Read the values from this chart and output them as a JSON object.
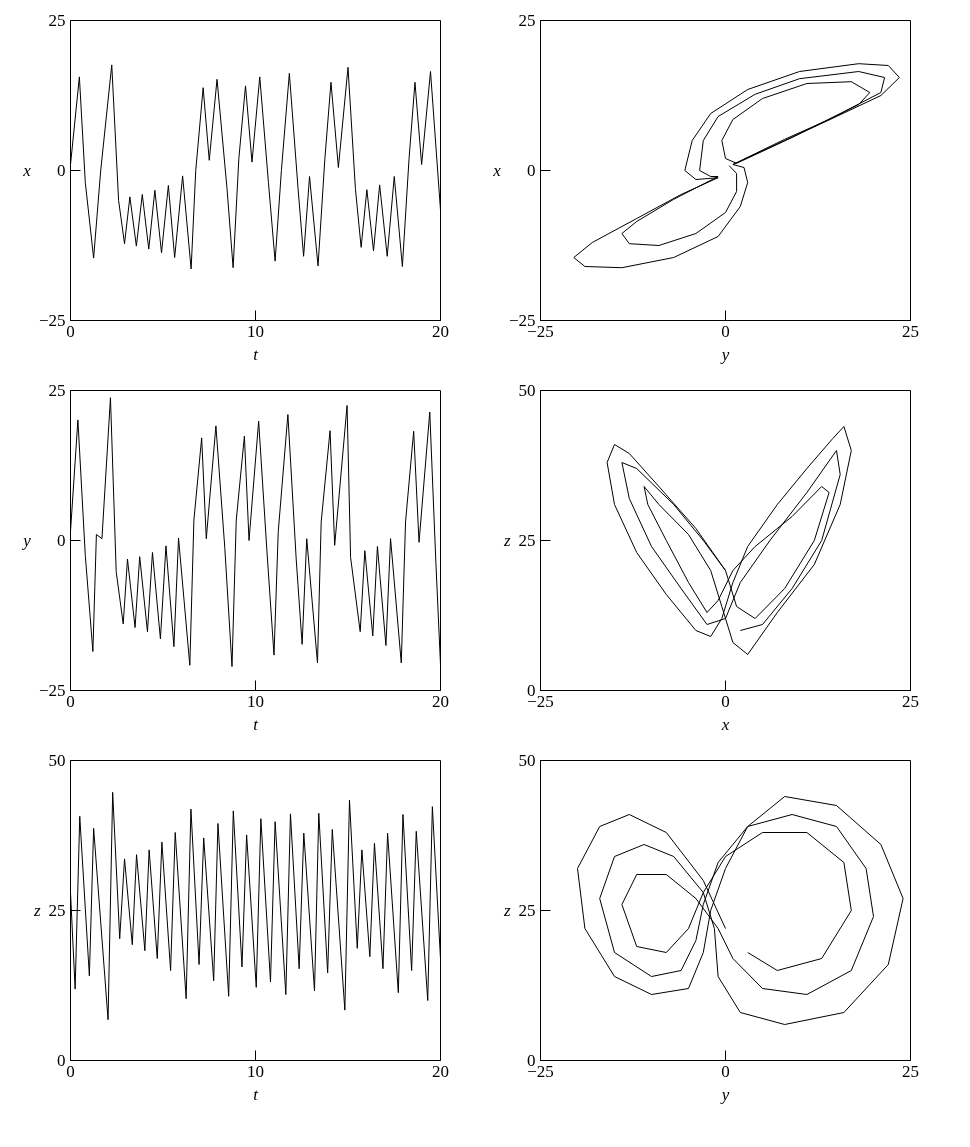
{
  "chart_data": [
    {
      "type": "line",
      "xlabel": "t",
      "ylabel": "x",
      "xlim": [
        0,
        20
      ],
      "ylim": [
        -25,
        25
      ],
      "xticks": [
        0,
        10,
        20
      ],
      "yticks": [
        -25,
        0,
        25
      ],
      "x": [
        0,
        0.48,
        0.8,
        1.25,
        1.63,
        2.23,
        2.6,
        2.92,
        3.21,
        3.56,
        3.88,
        4.23,
        4.56,
        4.92,
        5.29,
        5.63,
        6.06,
        6.52,
        6.77,
        7.17,
        7.5,
        7.92,
        8.46,
        8.79,
        9.1,
        9.46,
        9.81,
        10.23,
        10.7,
        11.06,
        11.4,
        11.83,
        12.3,
        12.6,
        12.92,
        13.38,
        13.75,
        14.08,
        14.48,
        15.0,
        15.4,
        15.71,
        16.02,
        16.38,
        16.71,
        17.12,
        17.5,
        17.94,
        18.3,
        18.62,
        18.98,
        19.46,
        20
      ],
      "series": [
        {
          "color": "#000000",
          "values": [
            1,
            15.6,
            -2,
            -14.6,
            -0.1,
            17.6,
            -5,
            -12.2,
            -4.4,
            -12.6,
            -4.0,
            -13.1,
            -3.3,
            -13.7,
            -2.5,
            -14.5,
            -0.9,
            -16.4,
            0,
            13.8,
            1.7,
            15.2,
            -3,
            -16.2,
            2,
            14.1,
            1.4,
            15.6,
            -2,
            -15.1,
            0,
            16.2,
            -3,
            -14.3,
            -1.0,
            -15.9,
            2,
            14.7,
            0.5,
            17.2,
            -3,
            -12.8,
            -3.2,
            -13.4,
            -2.4,
            -14.3,
            -1.0,
            -16.0,
            2,
            14.7,
            1.0,
            16.5,
            -6.6
          ]
        }
      ]
    },
    {
      "type": "line",
      "xlabel": "y",
      "ylabel": "x",
      "xlim": [
        -25,
        25
      ],
      "ylim": [
        -25,
        25
      ],
      "xticks": [
        -25,
        0,
        25
      ],
      "yticks": [
        -25,
        0,
        25
      ],
      "x": [
        1,
        8,
        15,
        21,
        23.5,
        22,
        18,
        10,
        3,
        -2,
        -4.5,
        -5.5,
        -4,
        -1,
        -6,
        -12,
        -18,
        -20.5,
        -19,
        -14,
        -7,
        -1,
        2,
        3,
        2.5,
        1,
        8,
        14,
        18,
        19.5,
        17,
        11,
        5,
        1,
        -0.5,
        0,
        1.5,
        9,
        16,
        21,
        21.5,
        18,
        10,
        4,
        -1,
        -3,
        -3.5,
        -2,
        -1,
        -7,
        -12,
        -14,
        -13,
        -9,
        -4,
        0,
        1.5,
        1.5,
        0.5
      ],
      "series": [
        {
          "color": "#000000",
          "values": [
            1,
            5,
            9,
            12.5,
            15.5,
            17.5,
            17.8,
            16.5,
            13.5,
            9.5,
            5,
            0,
            -1.5,
            -1.2,
            -4,
            -8,
            -12,
            -14.5,
            -16,
            -16.2,
            -14.5,
            -11,
            -6,
            -2,
            0.5,
            1,
            5.2,
            8.5,
            11,
            13,
            14.8,
            14.5,
            12,
            8.5,
            5,
            2,
            1.2,
            5.5,
            9.8,
            13,
            15.5,
            16.5,
            15.3,
            12.7,
            9,
            5,
            0,
            -1,
            -1,
            -4.8,
            -8.5,
            -10.5,
            -12.2,
            -12.5,
            -10.5,
            -7,
            -3.5,
            -0.5,
            0.8
          ]
        }
      ]
    },
    {
      "type": "line",
      "xlabel": "t",
      "ylabel": "y",
      "xlim": [
        0,
        20
      ],
      "ylim": [
        -25,
        25
      ],
      "xticks": [
        0,
        10,
        20
      ],
      "yticks": [
        -25,
        0,
        25
      ],
      "x": [
        0,
        0.4,
        0.8,
        1.21,
        1.4,
        1.7,
        2.16,
        2.47,
        2.85,
        3.08,
        3.49,
        3.74,
        4.16,
        4.43,
        4.86,
        5.16,
        5.59,
        5.84,
        6.45,
        6.67,
        7.09,
        7.34,
        7.86,
        8.34,
        8.73,
        8.96,
        9.4,
        9.65,
        10.17,
        10.62,
        11.0,
        11.23,
        11.75,
        12.2,
        12.52,
        12.77,
        13.35,
        13.55,
        14.03,
        14.28,
        14.95,
        15.14,
        15.66,
        15.91,
        16.34,
        16.59,
        17.05,
        17.3,
        17.88,
        18.11,
        18.55,
        18.84,
        19.42,
        19.75,
        20
      ],
      "series": [
        {
          "color": "#000000",
          "values": [
            1.5,
            20.1,
            -2.5,
            -18.5,
            1.0,
            0.3,
            23.8,
            -5.2,
            -13.9,
            -3.1,
            -14.5,
            -2.7,
            -15.2,
            -2.0,
            -16.4,
            -0.9,
            -17.7,
            0.4,
            -20.8,
            3.4,
            17.1,
            0.3,
            19.1,
            -1.2,
            -21.0,
            3.4,
            17.4,
            0.0,
            19.9,
            -1.9,
            -19.1,
            1.5,
            21.0,
            -3.1,
            -17.3,
            0.3,
            -20.4,
            3.1,
            18.3,
            -0.8,
            22.5,
            -2.8,
            -15.2,
            -1.7,
            -15.9,
            -1.0,
            -17.5,
            0.3,
            -20.4,
            3.1,
            18.2,
            -0.3,
            21.4,
            -3.7,
            -20.7
          ]
        }
      ]
    },
    {
      "type": "line",
      "xlabel": "x",
      "ylabel": "z",
      "xlim": [
        -25,
        25
      ],
      "ylim": [
        0,
        50
      ],
      "xticks": [
        -25,
        0,
        25
      ],
      "yticks": [
        0,
        25,
        50
      ],
      "x": [
        0,
        -4,
        -9,
        -13,
        -15,
        -16,
        -15,
        -12,
        -8,
        -4,
        -2,
        -0.5,
        1,
        3,
        7,
        11,
        14.5,
        16,
        17,
        15.5,
        12,
        7,
        3,
        1,
        -0.5,
        -2,
        -5,
        -9,
        -11,
        -10.5,
        -8,
        -5,
        -2.5,
        -1,
        1,
        4,
        9,
        13,
        14,
        12,
        8,
        4,
        1.5,
        0,
        -3,
        -7,
        -12,
        -14,
        -13,
        -10,
        -6,
        -2.5,
        0,
        2,
        6,
        11,
        15,
        15.5,
        13,
        9,
        5,
        2
      ],
      "series": [
        {
          "color": "#000000",
          "values": [
            20,
            27,
            34,
            39.5,
            41,
            38,
            31,
            23,
            16,
            10,
            9,
            12,
            18,
            24,
            31,
            37,
            42,
            44,
            40,
            31,
            21,
            13,
            6,
            8,
            14,
            20,
            26,
            31,
            34,
            31,
            25,
            18,
            13,
            15,
            20,
            24,
            29,
            34,
            33,
            25,
            17,
            12,
            14,
            20,
            25,
            31,
            37,
            38,
            32,
            24,
            17,
            11,
            12,
            18,
            25,
            33,
            40,
            36,
            25,
            17,
            11,
            10
          ]
        }
      ]
    },
    {
      "type": "line",
      "xlabel": "t",
      "ylabel": "z",
      "xlim": [
        0,
        20
      ],
      "ylim": [
        0,
        50
      ],
      "xticks": [
        0,
        10,
        20
      ],
      "yticks": [
        0,
        25,
        50
      ],
      "x": [
        0,
        0.25,
        0.5,
        1.02,
        1.25,
        2.03,
        2.28,
        2.66,
        2.92,
        3.34,
        3.57,
        4.02,
        4.25,
        4.69,
        4.94,
        5.41,
        5.66,
        6.25,
        6.51,
        6.95,
        7.2,
        7.74,
        7.97,
        8.55,
        8.8,
        9.27,
        9.52,
        10.04,
        10.29,
        10.81,
        11.06,
        11.64,
        11.89,
        12.36,
        12.61,
        13.19,
        13.42,
        13.9,
        14.15,
        14.83,
        15.08,
        15.5,
        15.75,
        16.18,
        16.43,
        16.89,
        17.14,
        17.72,
        17.97,
        18.44,
        18.69,
        19.31,
        19.56,
        20
      ],
      "series": [
        {
          "color": "#000000",
          "values": [
            28,
            11.9,
            40.7,
            14.1,
            38.7,
            6.8,
            44.7,
            20.3,
            33.6,
            19.3,
            34.3,
            18.3,
            35.1,
            17.0,
            36.4,
            15.0,
            38.0,
            10.3,
            41.9,
            16.0,
            37.1,
            13.3,
            39.5,
            10.7,
            41.6,
            15.6,
            37.6,
            12.2,
            40.3,
            13.1,
            39.8,
            11.0,
            41.1,
            15.3,
            37.9,
            11.6,
            41.2,
            14.6,
            38.5,
            8.4,
            43.4,
            18.7,
            35.1,
            17.3,
            36.2,
            15.3,
            37.9,
            11.3,
            41.0,
            15.0,
            38.2,
            10.0,
            42.3,
            16.9
          ]
        }
      ]
    },
    {
      "type": "line",
      "xlabel": "y",
      "ylabel": "z",
      "xlim": [
        -25,
        25
      ],
      "ylim": [
        0,
        50
      ],
      "xticks": [
        -25,
        0,
        25
      ],
      "yticks": [
        0,
        25,
        50
      ],
      "x": [
        0,
        -3,
        -8,
        -13,
        -17,
        -20,
        -19,
        -15,
        -10,
        -5,
        -3,
        -2,
        0,
        3,
        8,
        15,
        21,
        24,
        22,
        16,
        8,
        2,
        -1,
        -1.5,
        -3,
        -7,
        -11,
        -15,
        -17,
        -15,
        -10,
        -6,
        -4,
        -3,
        -1,
        3,
        9,
        15,
        19,
        20,
        17,
        11,
        5,
        1,
        -1,
        -4,
        -8,
        -12,
        -14,
        -12,
        -8,
        -5,
        -3,
        0,
        5,
        11,
        16,
        17,
        13,
        7,
        3
      ],
      "series": [
        {
          "color": "#000000",
          "values": [
            22,
            30,
            38,
            41,
            39,
            32,
            22,
            14,
            11,
            12,
            18,
            25,
            32,
            39,
            44,
            42.5,
            36,
            27,
            16,
            8,
            6,
            8,
            14,
            22,
            28,
            34,
            36,
            34,
            27,
            18,
            14,
            15,
            20,
            26,
            33,
            39,
            41,
            39,
            32,
            24,
            15,
            11,
            12,
            17,
            22,
            27,
            31,
            31,
            26,
            19,
            18,
            22,
            28,
            34,
            38,
            38,
            33,
            25,
            17,
            15,
            18
          ]
        }
      ]
    }
  ]
}
